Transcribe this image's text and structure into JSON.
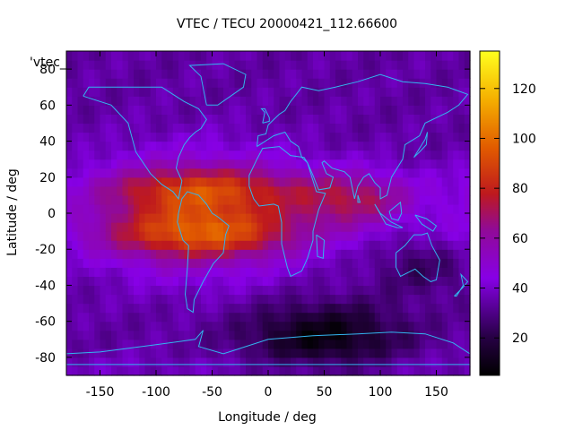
{
  "chart_data": {
    "type": "heatmap",
    "title": "VTEC / TECU 20000421_112.66600",
    "xlabel": "Longitude / deg",
    "ylabel": "Latitude / deg",
    "key_label": "'vtec_",
    "xlim": [
      -180,
      180
    ],
    "ylim": [
      -90,
      90
    ],
    "xticks": [
      -150,
      -100,
      -50,
      0,
      50,
      100,
      150
    ],
    "yticks": [
      -80,
      -60,
      -40,
      -20,
      0,
      20,
      40,
      60,
      80
    ],
    "colorbar": {
      "range": [
        5,
        135
      ],
      "ticks": [
        20,
        40,
        60,
        80,
        100,
        120
      ],
      "palette": "black-purple-red-orange-yellow"
    },
    "features": {
      "equatorial_anomaly_peak_lon": -60,
      "northern_crest": {
        "lat": 14,
        "value": 95
      },
      "southern_crest": {
        "lat": -12,
        "value": 100
      },
      "daytime_half_width_deg": 95,
      "dawn_extension_lon": 110,
      "minimum_region": {
        "lon": 50,
        "lat": -68,
        "value": 8
      },
      "high_latitude_background": 34,
      "max_value": 112
    },
    "coastlines_color": "#33b5f0"
  }
}
